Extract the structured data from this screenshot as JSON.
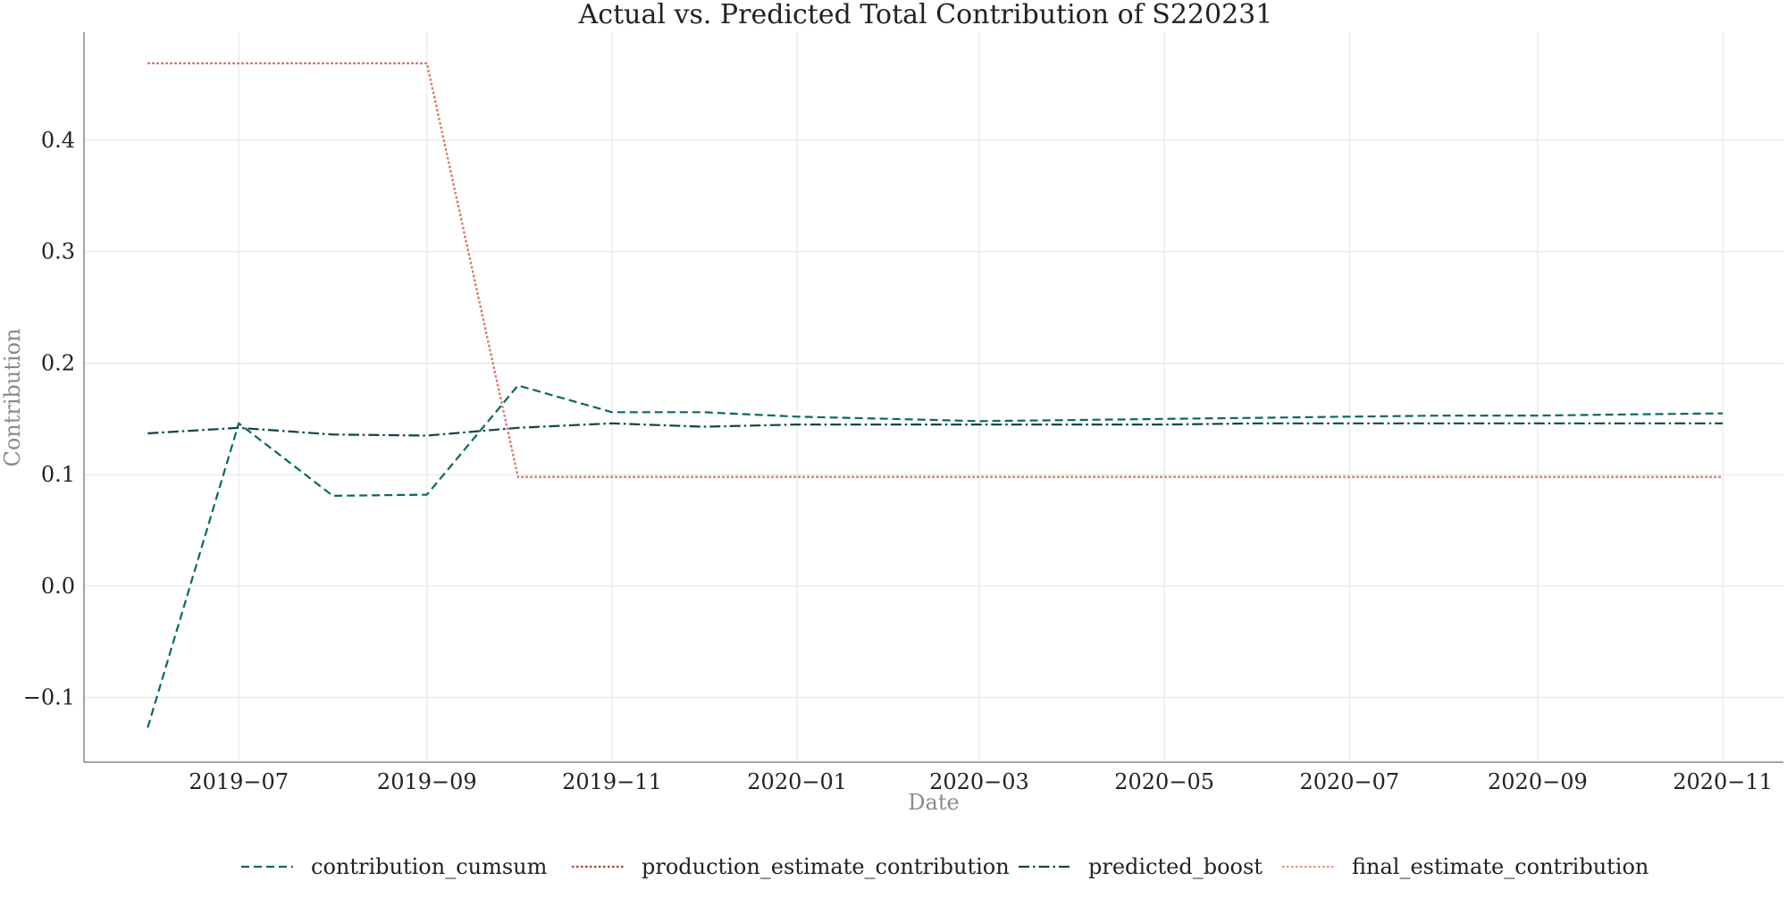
{
  "chart_data": {
    "type": "line",
    "title": "Actual vs. Predicted Total Contribution of S220231",
    "xlabel": "Date",
    "ylabel": "Contribution",
    "x": [
      "2019-06-01",
      "2019-07-01",
      "2019-08-01",
      "2019-09-01",
      "2019-10-01",
      "2019-11-01",
      "2019-12-01",
      "2020-01-01",
      "2020-02-01",
      "2020-03-01",
      "2020-04-01",
      "2020-05-01",
      "2020-06-01",
      "2020-07-01",
      "2020-08-01",
      "2020-09-01",
      "2020-10-01",
      "2020-11-01"
    ],
    "x_ticks": [
      "2019-07-01",
      "2019-09-01",
      "2019-11-01",
      "2020-01-01",
      "2020-03-01",
      "2020-05-01",
      "2020-07-01",
      "2020-09-01",
      "2020-11-01"
    ],
    "x_tick_labels": [
      "2019−07",
      "2019−09",
      "2019−11",
      "2020−01",
      "2020−03",
      "2020−05",
      "2020−07",
      "2020−09",
      "2020−11"
    ],
    "x_range": [
      "2019-05-11",
      "2020-11-21"
    ],
    "y_ticks": [
      -0.1,
      0.0,
      0.1,
      0.2,
      0.3,
      0.4
    ],
    "y_tick_labels": [
      "−0.1",
      "0.0",
      "0.1",
      "0.2",
      "0.3",
      "0.4"
    ],
    "ylim": [
      -0.158,
      0.497
    ],
    "grid": true,
    "legend_position": "bottom-center",
    "series": [
      {
        "name": "contribution_cumsum",
        "color": "#006b63",
        "style": "dashed",
        "values": [
          -0.127,
          0.146,
          0.081,
          0.082,
          0.18,
          0.156,
          0.156,
          0.152,
          0.15,
          0.148,
          0.149,
          0.15,
          0.151,
          0.152,
          0.153,
          0.153,
          0.154,
          0.155
        ]
      },
      {
        "name": "production_estimate_contribution",
        "color": "#a8433a",
        "style": "dotted",
        "values": [
          0.469,
          0.469,
          0.469,
          0.469,
          0.098,
          0.098,
          0.098,
          0.098,
          0.098,
          0.098,
          0.098,
          0.098,
          0.098,
          0.098,
          0.098,
          0.098,
          0.098,
          0.098
        ]
      },
      {
        "name": "predicted_boost",
        "color": "#04474a",
        "style": "dashdot",
        "values": [
          0.137,
          0.142,
          0.136,
          0.135,
          0.142,
          0.146,
          0.143,
          0.145,
          0.145,
          0.145,
          0.145,
          0.145,
          0.146,
          0.146,
          0.146,
          0.146,
          0.146,
          0.146
        ]
      },
      {
        "name": "final_estimate_contribution",
        "color": "#e07b65",
        "style": "dotted-light",
        "values": [
          0.469,
          0.469,
          0.469,
          0.469,
          0.098,
          0.098,
          0.098,
          0.098,
          0.098,
          0.098,
          0.098,
          0.098,
          0.098,
          0.098,
          0.098,
          0.098,
          0.098,
          0.098
        ]
      }
    ]
  }
}
